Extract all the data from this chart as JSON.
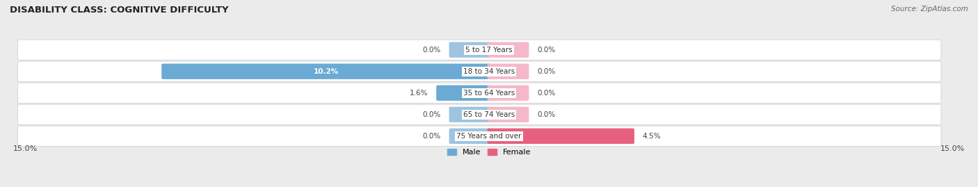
{
  "title": "DISABILITY CLASS: COGNITIVE DIFFICULTY",
  "source": "Source: ZipAtlas.com",
  "categories": [
    "5 to 17 Years",
    "18 to 34 Years",
    "35 to 64 Years",
    "65 to 74 Years",
    "75 Years and over"
  ],
  "male_values": [
    0.0,
    10.2,
    1.6,
    0.0,
    0.0
  ],
  "female_values": [
    0.0,
    0.0,
    0.0,
    0.0,
    4.5
  ],
  "male_color": "#9ec4e0",
  "male_color_bold": "#6aaad4",
  "female_color": "#f5b8c8",
  "female_color_bold": "#e8607f",
  "axis_max": 15.0,
  "stub_size": 1.2,
  "bg_color": "#ebebeb",
  "row_bg_color": "#f7f7f7",
  "legend_male": "Male",
  "legend_female": "Female"
}
